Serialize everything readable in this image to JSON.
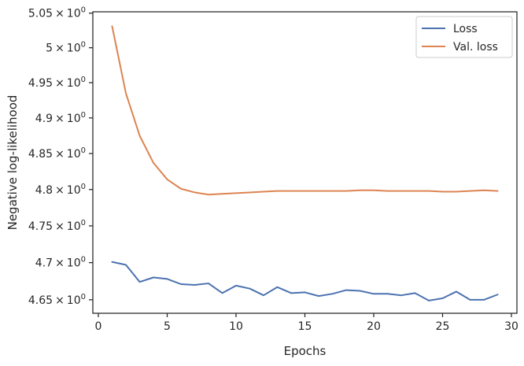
{
  "chart_data": {
    "type": "line",
    "xlabel": "Epochs",
    "ylabel": "Negative log-likelihood",
    "xlim": [
      -0.4,
      30.4
    ],
    "ylim": [
      4.632,
      5.052
    ],
    "y_scale": "log",
    "x_ticks": [
      0,
      5,
      10,
      15,
      20,
      25,
      30
    ],
    "x_tick_labels": [
      "0",
      "5",
      "10",
      "15",
      "20",
      "25",
      "30"
    ],
    "y_ticks": [
      4.65,
      4.7,
      4.75,
      4.8,
      4.85,
      4.9,
      4.95,
      5.0,
      5.05
    ],
    "y_tick_mantissas": [
      "4.65",
      "4.7",
      "4.75",
      "4.8",
      "4.85",
      "4.9",
      "4.95",
      "5",
      "5.05"
    ],
    "y_tick_times": "×",
    "y_tick_base": "10",
    "y_tick_exponent": "0",
    "legend_position": "top-right",
    "grid": false,
    "x": [
      1,
      2,
      3,
      4,
      5,
      6,
      7,
      8,
      9,
      10,
      11,
      12,
      13,
      14,
      15,
      16,
      17,
      18,
      19,
      20,
      21,
      22,
      23,
      24,
      25,
      26,
      27,
      28,
      29
    ],
    "series": [
      {
        "name": "Loss",
        "color": "#4c72b0",
        "values": [
          4.701,
          4.697,
          4.674,
          4.68,
          4.678,
          4.671,
          4.67,
          4.672,
          4.659,
          4.669,
          4.665,
          4.656,
          4.667,
          4.659,
          4.66,
          4.655,
          4.658,
          4.663,
          4.662,
          4.658,
          4.658,
          4.656,
          4.659,
          4.649,
          4.652,
          4.661,
          4.65,
          4.65,
          4.657
        ]
      },
      {
        "name": "Val. loss",
        "color": "#dd8452",
        "values": [
          5.031,
          4.935,
          4.875,
          4.837,
          4.814,
          4.801,
          4.796,
          4.793,
          4.794,
          4.795,
          4.796,
          4.797,
          4.798,
          4.798,
          4.798,
          4.798,
          4.798,
          4.798,
          4.799,
          4.799,
          4.798,
          4.798,
          4.798,
          4.798,
          4.797,
          4.797,
          4.798,
          4.799,
          4.798
        ]
      }
    ]
  }
}
